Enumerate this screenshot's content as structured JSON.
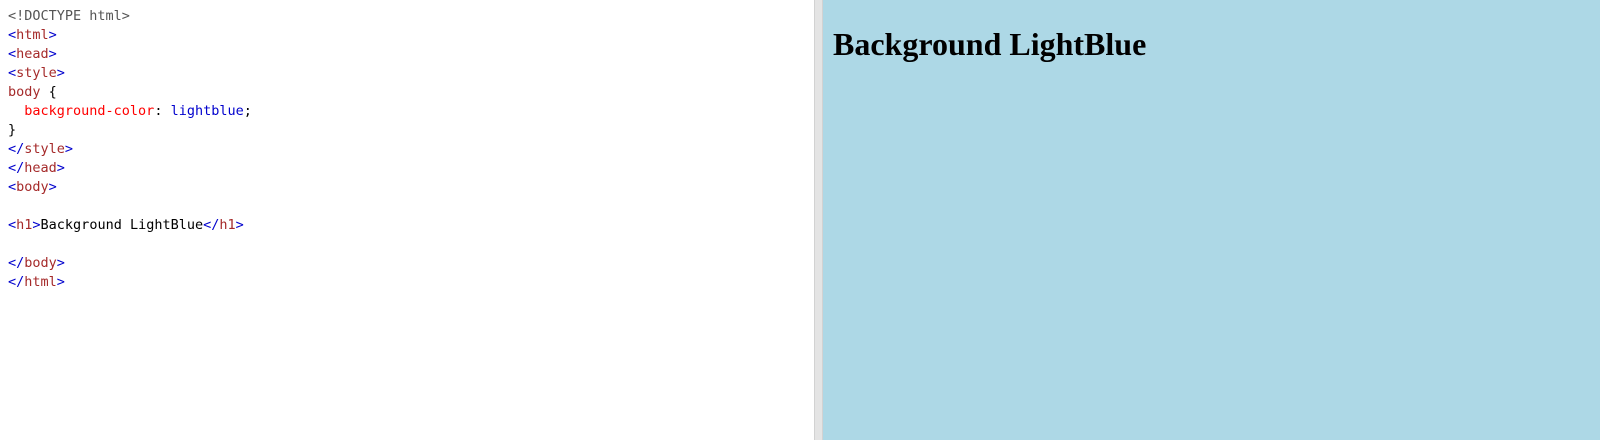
{
  "colors": {
    "punctuation": "#0000cd",
    "tag": "#a52a2a",
    "property": "#ff0000",
    "value": "#0000cd",
    "text": "#000000",
    "doctype": "#555555",
    "result_bg": "#add8e6"
  },
  "code": {
    "lines": [
      [
        {
          "t": "<!DOCTYPE html>",
          "c": "doctype"
        }
      ],
      [
        {
          "t": "<",
          "c": "punctuation"
        },
        {
          "t": "html",
          "c": "tag"
        },
        {
          "t": ">",
          "c": "punctuation"
        }
      ],
      [
        {
          "t": "<",
          "c": "punctuation"
        },
        {
          "t": "head",
          "c": "tag"
        },
        {
          "t": ">",
          "c": "punctuation"
        }
      ],
      [
        {
          "t": "<",
          "c": "punctuation"
        },
        {
          "t": "style",
          "c": "tag"
        },
        {
          "t": ">",
          "c": "punctuation"
        }
      ],
      [
        {
          "t": "body ",
          "c": "tag"
        },
        {
          "t": "{",
          "c": "text"
        }
      ],
      [
        {
          "t": "  background-color",
          "c": "property"
        },
        {
          "t": ": ",
          "c": "text"
        },
        {
          "t": "lightblue",
          "c": "value"
        },
        {
          "t": ";",
          "c": "text"
        }
      ],
      [
        {
          "t": "}",
          "c": "text"
        }
      ],
      [
        {
          "t": "</",
          "c": "punctuation"
        },
        {
          "t": "style",
          "c": "tag"
        },
        {
          "t": ">",
          "c": "punctuation"
        }
      ],
      [
        {
          "t": "</",
          "c": "punctuation"
        },
        {
          "t": "head",
          "c": "tag"
        },
        {
          "t": ">",
          "c": "punctuation"
        }
      ],
      [
        {
          "t": "<",
          "c": "punctuation"
        },
        {
          "t": "body",
          "c": "tag"
        },
        {
          "t": ">",
          "c": "punctuation"
        }
      ],
      [],
      [
        {
          "t": "<",
          "c": "punctuation"
        },
        {
          "t": "h1",
          "c": "tag"
        },
        {
          "t": ">",
          "c": "punctuation"
        },
        {
          "t": "Background LightBlue",
          "c": "text"
        },
        {
          "t": "</",
          "c": "punctuation"
        },
        {
          "t": "h1",
          "c": "tag"
        },
        {
          "t": ">",
          "c": "punctuation"
        }
      ],
      [],
      [
        {
          "t": "</",
          "c": "punctuation"
        },
        {
          "t": "body",
          "c": "tag"
        },
        {
          "t": ">",
          "c": "punctuation"
        }
      ],
      [
        {
          "t": "</",
          "c": "punctuation"
        },
        {
          "t": "html",
          "c": "tag"
        },
        {
          "t": ">",
          "c": "punctuation"
        }
      ]
    ]
  },
  "result": {
    "heading": "Background LightBlue"
  }
}
